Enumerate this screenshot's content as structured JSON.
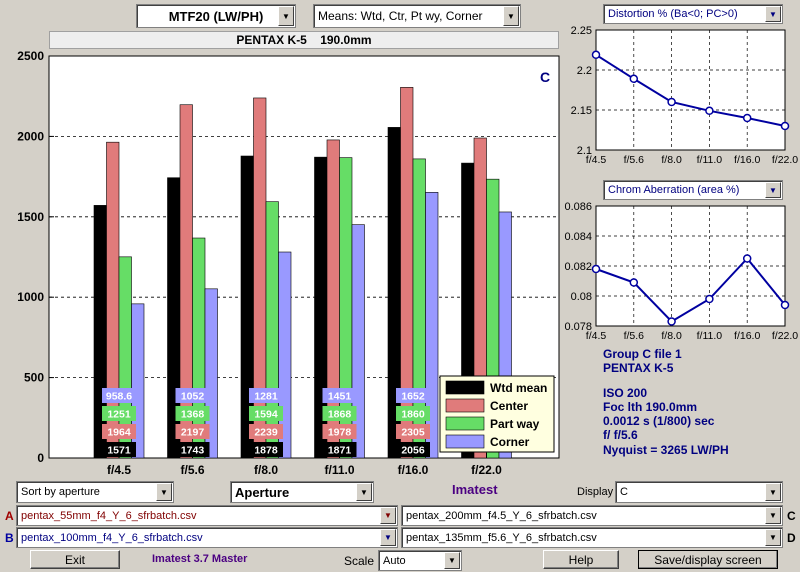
{
  "header": {
    "mtf_select": "MTF20 (LW/PH)",
    "means_select": "Means: Wtd, Ctr, Pt wy, Corner",
    "title": "PENTAX K-5    190.0mm"
  },
  "right_panels": {
    "distortion_select": "Distortion %  (Ba<0; PC>0)",
    "chrom_select": "Chrom Aberration (area %)"
  },
  "info": {
    "lines": [
      "Group C file 1",
      "PENTAX K-5",
      "",
      "ISO  200",
      "Foc lth  190.0mm",
      "0.0012 s  (1/800)  sec",
      "f/  f/5.6",
      "Nyquist = 3265 LW/PH"
    ]
  },
  "controls": {
    "sort_select": "Sort by aperture",
    "aperture_select": "Aperture",
    "imatest_label": "Imatest",
    "display_label": "Display",
    "display_select": "C",
    "file_a_label": "A",
    "file_a": "pentax_55mm_f4_Y_6_sfrbatch.csv",
    "file_b_label": "B",
    "file_b": "pentax_100mm_f4_Y_6_sfrbatch.csv",
    "file_c_label": "C",
    "file_c": "pentax_200mm_f4.5_Y_6_sfrbatch.csv",
    "file_d_label": "D",
    "file_d": "pentax_135mm_f5.6_Y_6_sfrbatch.csv",
    "exit_button": "Exit",
    "version": "Imatest 3.7 Master",
    "scale_label": "Scale",
    "scale_select": "Auto",
    "help_button": "Help",
    "save_button": "Save/display screen"
  },
  "colors": {
    "wtd": "#000000",
    "center": "#e07b7b",
    "partway": "#66dd66",
    "corner": "#9999ff",
    "line": "#0000a0",
    "text_blue": "#000080",
    "purple": "#4b0082"
  },
  "chart_data": [
    {
      "type": "bar",
      "annotation": "C",
      "categories": [
        "f/4.5",
        "f/5.6",
        "f/8.0",
        "f/11.0",
        "f/16.0",
        "f/22.0"
      ],
      "ylim": [
        0,
        2500
      ],
      "yticks": [
        0,
        500,
        1000,
        1500,
        2000,
        2500
      ],
      "grid": true,
      "legend_position": "bottom-right",
      "series": [
        {
          "name": "Wtd mean",
          "values": [
            1571,
            1743,
            1878,
            1871,
            2056,
            1834
          ],
          "labels": [
            "1571",
            "1743",
            "1878",
            "1871",
            "2056",
            ""
          ]
        },
        {
          "name": "Center",
          "values": [
            1964,
            2197,
            2239,
            1978,
            2305,
            1990
          ],
          "labels": [
            "1964",
            "2197",
            "2239",
            "1978",
            "2305",
            ""
          ]
        },
        {
          "name": "Part way",
          "values": [
            1251,
            1368,
            1594,
            1868,
            1860,
            1734
          ],
          "labels": [
            "1251",
            "1368",
            "1594",
            "1868",
            "1860",
            ""
          ]
        },
        {
          "name": "Corner",
          "values": [
            958.6,
            1052,
            1281,
            1451,
            1652,
            1530
          ],
          "labels": [
            "958.6",
            "1052",
            "1281",
            "1451",
            "1652",
            ""
          ]
        }
      ]
    },
    {
      "type": "line",
      "categories": [
        "f/4.5",
        "f/5.6",
        "f/8.0",
        "f/11.0",
        "f/16.0",
        "f/22.0"
      ],
      "ylim": [
        2.1,
        2.25
      ],
      "yticks": [
        "2.1",
        "2.15",
        "2.2",
        "2.25"
      ],
      "values": [
        2.219,
        2.189,
        2.16,
        2.149,
        2.14,
        2.13
      ],
      "grid": true
    },
    {
      "type": "line",
      "categories": [
        "f/4.5",
        "f/5.6",
        "f/8.0",
        "f/11.0",
        "f/16.0",
        "f/22.0"
      ],
      "ylim": [
        0.078,
        0.086
      ],
      "yticks": [
        "0.078",
        "0.08",
        "0.082",
        "0.084",
        "0.086"
      ],
      "values": [
        0.0818,
        0.0809,
        0.0783,
        0.0798,
        0.0825,
        0.0794
      ],
      "grid": true
    }
  ]
}
